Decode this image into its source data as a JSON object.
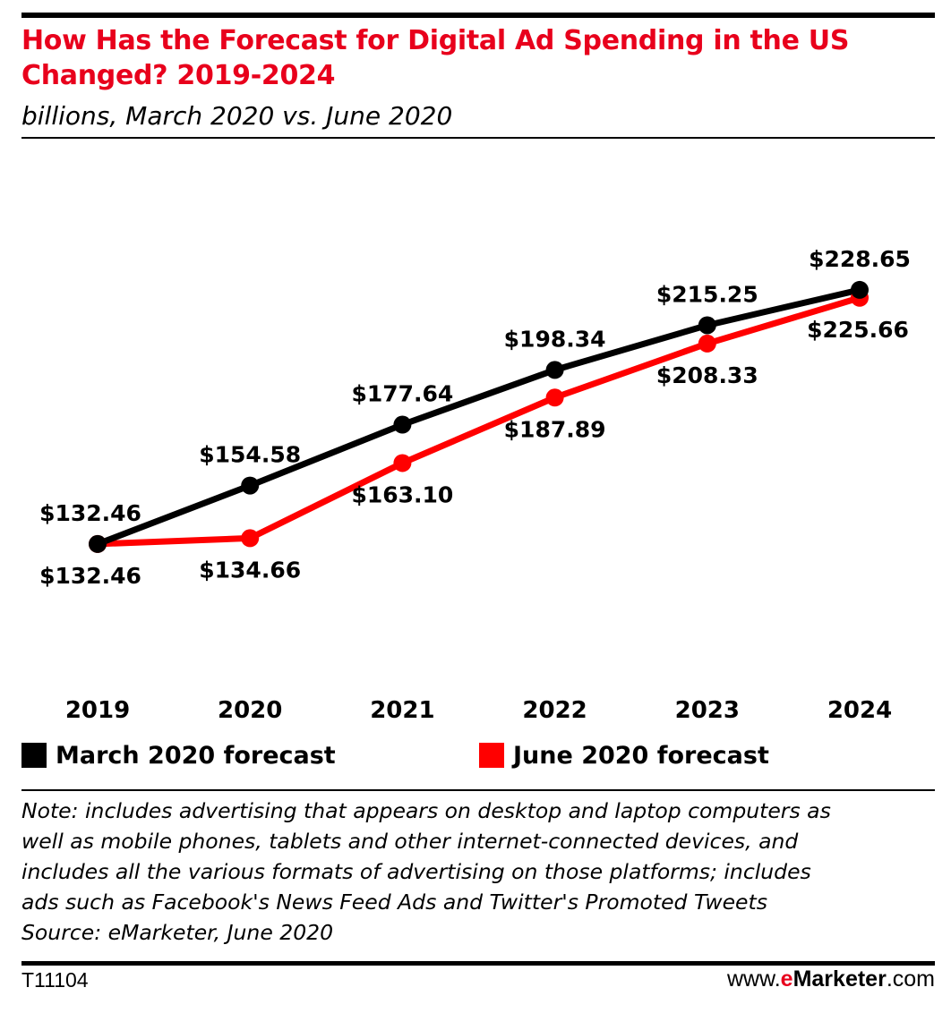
{
  "header": {
    "title": "How Has the Forecast for Digital Ad Spending in the US Changed? 2019-2024",
    "subtitle": "billions, March 2020 vs. June 2020"
  },
  "chart_data": {
    "type": "line",
    "title": "How Has the Forecast for Digital Ad Spending in the US Changed? 2019-2024",
    "subtitle": "billions, March 2020 vs. June 2020",
    "categories": [
      "2019",
      "2020",
      "2021",
      "2022",
      "2023",
      "2024"
    ],
    "series": [
      {
        "name": "March 2020 forecast",
        "color": "#000000",
        "values": [
          132.46,
          154.58,
          177.64,
          198.34,
          215.25,
          228.65
        ],
        "labels": [
          "$132.46",
          "$154.58",
          "$177.64",
          "$198.34",
          "$215.25",
          "$228.65"
        ]
      },
      {
        "name": "June 2020 forecast",
        "color": "#ff0000",
        "values": [
          132.46,
          134.66,
          163.1,
          187.89,
          208.33,
          225.66
        ],
        "labels": [
          "$132.46",
          "$134.66",
          "$163.10",
          "$187.89",
          "$208.33",
          "$225.66"
        ]
      }
    ],
    "xlabel": "",
    "ylabel": "",
    "ylim": [
      85,
      252
    ],
    "grid": false,
    "legend_position": "bottom"
  },
  "footer": {
    "note": "Note: includes advertising that appears on desktop and laptop computers as\nwell as mobile phones, tablets and other internet-connected devices, and\nincludes all the various formats of advertising on those platforms; includes\nads such as Facebook's News Feed Ads and Twitter's Promoted Tweets\nSource: eMarketer, June 2020",
    "code": "T11104",
    "brand_prefix": "www.",
    "brand_e": "e",
    "brand_name": "Marketer",
    "brand_suffix": ".com"
  }
}
